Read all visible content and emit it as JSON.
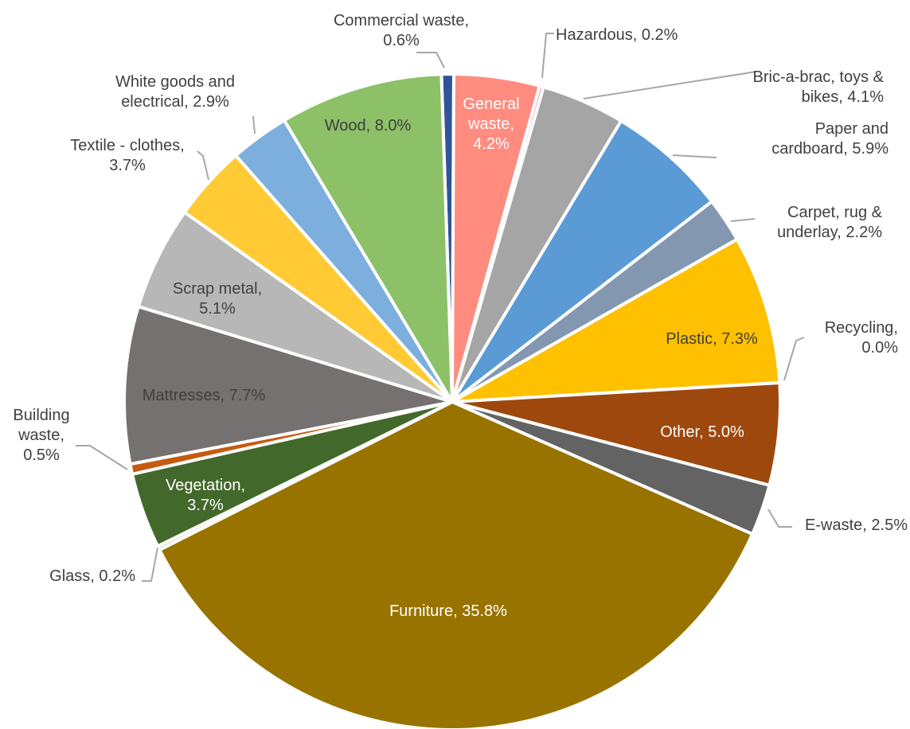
{
  "chart_data": {
    "type": "pie",
    "title": "",
    "legend": "none",
    "slices": [
      {
        "category": "Commercial waste",
        "value": 0.6,
        "label_lines": [
          "Commercial waste,",
          "0.6%"
        ],
        "color": "#2f5597"
      },
      {
        "category": "General waste",
        "value": 4.2,
        "label_lines": [
          "General",
          "waste,",
          "4.2%"
        ],
        "color": "#ff8c7f"
      },
      {
        "category": "Hazardous",
        "value": 0.2,
        "label_lines": [
          "Hazardous, 0.2%"
        ],
        "color": "#ff99cc"
      },
      {
        "category": "Bric-a-brac, toys & bikes",
        "value": 4.1,
        "label_lines": [
          "Bric-a-brac, toys &",
          "bikes, 4.1%"
        ],
        "color": "#a5a5a5"
      },
      {
        "category": "Paper and cardboard",
        "value": 5.9,
        "label_lines": [
          "Paper and",
          "cardboard, 5.9%"
        ],
        "color": "#5b9bd5"
      },
      {
        "category": "Carpet, rug & underlay",
        "value": 2.2,
        "label_lines": [
          "Carpet, rug &",
          "underlay, 2.2%"
        ],
        "color": "#8497b0"
      },
      {
        "category": "Plastic",
        "value": 7.3,
        "label_lines": [
          "Plastic, 7.3%"
        ],
        "color": "#ffc000"
      },
      {
        "category": "Recycling",
        "value": 0.0,
        "label_lines": [
          "Recycling,",
          "0.0%"
        ],
        "color": "#70ad47"
      },
      {
        "category": "Other",
        "value": 5.0,
        "label_lines": [
          "Other, 5.0%"
        ],
        "color": "#9e480e"
      },
      {
        "category": "E-waste",
        "value": 2.5,
        "label_lines": [
          "E-waste, 2.5%"
        ],
        "color": "#636363"
      },
      {
        "category": "Furniture",
        "value": 35.8,
        "label_lines": [
          "Furniture, 35.8%"
        ],
        "color": "#997300"
      },
      {
        "category": "Glass",
        "value": 0.2,
        "label_lines": [
          "Glass, 0.2%"
        ],
        "color": "#c5e0b4"
      },
      {
        "category": "Vegetation",
        "value": 3.7,
        "label_lines": [
          "Vegetation,",
          "3.7%"
        ],
        "color": "#43682b"
      },
      {
        "category": "Building waste",
        "value": 0.5,
        "label_lines": [
          "Building",
          "waste,",
          "0.5%"
        ],
        "color": "#c55a11"
      },
      {
        "category": "Mattresses",
        "value": 7.7,
        "label_lines": [
          "Mattresses, 7.7%"
        ],
        "color": "#767171"
      },
      {
        "category": "Scrap metal",
        "value": 5.1,
        "label_lines": [
          "Scrap metal,",
          "5.1%"
        ],
        "color": "#b7b7b7"
      },
      {
        "category": "Textile - clothes",
        "value": 3.7,
        "label_lines": [
          "Textile - clothes,",
          "3.7%"
        ],
        "color": "#ffca33"
      },
      {
        "category": "White goods and electrical",
        "value": 2.9,
        "label_lines": [
          "White goods and",
          "electrical, 2.9%"
        ],
        "color": "#7cafdd"
      },
      {
        "category": "Wood",
        "value": 8.0,
        "label_lines": [
          "Wood, 8.0%"
        ],
        "color": "#8cc168"
      }
    ]
  }
}
